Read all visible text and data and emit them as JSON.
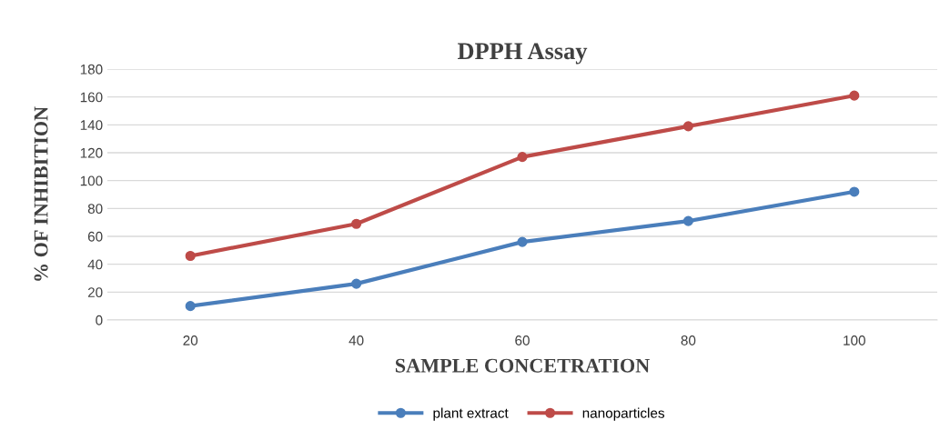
{
  "chart_data": {
    "type": "line",
    "title": "DPPH Assay",
    "xlabel": "SAMPLE CONCETRATION",
    "ylabel": "% OF INHIBITION",
    "categories": [
      "20",
      "40",
      "60",
      "80",
      "100"
    ],
    "series": [
      {
        "name": "plant extract",
        "color": "#4a7ebb",
        "values": [
          10,
          26,
          56,
          71,
          92
        ]
      },
      {
        "name": "nanoparticles",
        "color": "#be4b48",
        "values": [
          46,
          69,
          117,
          139,
          161
        ]
      }
    ],
    "ylim": [
      0,
      180
    ],
    "yticks": [
      0,
      20,
      40,
      60,
      80,
      100,
      120,
      140,
      160,
      180
    ],
    "grid": "y",
    "legend": "bottom",
    "marker": "circle",
    "line_style": "solid"
  }
}
